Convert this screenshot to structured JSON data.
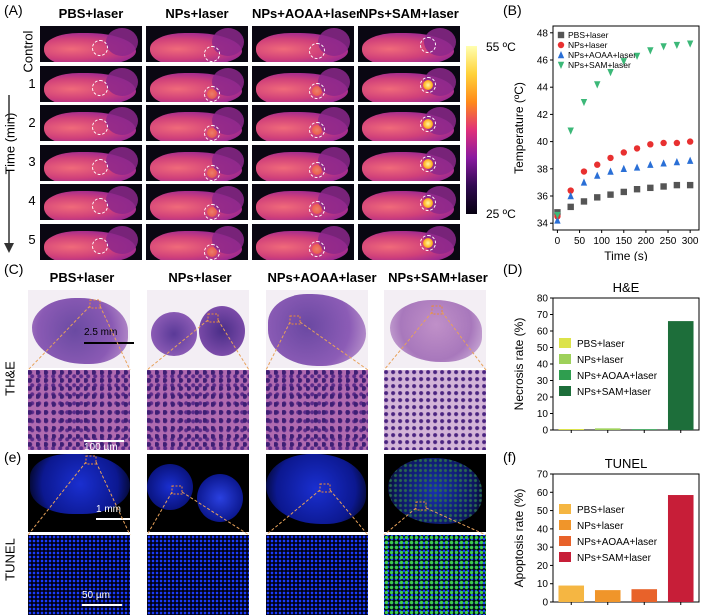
{
  "panels": {
    "A": "(A)",
    "B": "(B)",
    "C": "(C)",
    "D": "(D)",
    "e": "(e)",
    "f": "(f)"
  },
  "groups": [
    "PBS+laser",
    "NPs+laser",
    "NPs+AOAA+laser",
    "NPs+SAM+laser"
  ],
  "thermal": {
    "rows": [
      "Control",
      "1",
      "2",
      "3",
      "4",
      "5"
    ],
    "time_axis": "Time (min)",
    "colorbar_max": "55 ºC",
    "colorbar_min": "25 ºC"
  },
  "stain_labels": {
    "he": "TH&E",
    "tunel": "TUNEL"
  },
  "scale_bars": {
    "he_top": "2.5 mm",
    "he_bottom": "100 µm",
    "tunel_top": "1 mm",
    "tunel_bottom": "50 µm"
  },
  "colors": {
    "pbs": "#555555",
    "nps": "#e83030",
    "aoaa": "#2a6fd6",
    "sam": "#3cb878"
  },
  "chart_data": [
    {
      "id": "B",
      "type": "scatter",
      "xlabel": "Time (s)",
      "ylabel": "Temperature (ºC)",
      "xlim": [
        -10,
        320
      ],
      "ylim": [
        33.5,
        48.5
      ],
      "xticks": [
        0,
        50,
        100,
        150,
        200,
        250,
        300
      ],
      "yticks": [
        34,
        36,
        38,
        40,
        42,
        44,
        46,
        48
      ],
      "x": [
        0,
        30,
        60,
        90,
        120,
        150,
        180,
        210,
        240,
        270,
        300
      ],
      "series": [
        {
          "name": "PBS+laser",
          "marker": "square",
          "color": "#555555",
          "values": [
            34.8,
            35.2,
            35.6,
            35.9,
            36.1,
            36.3,
            36.5,
            36.6,
            36.7,
            36.8,
            36.8
          ]
        },
        {
          "name": "NPs+laser",
          "marker": "circle",
          "color": "#e83030",
          "values": [
            34.5,
            36.4,
            37.8,
            38.3,
            38.8,
            39.2,
            39.5,
            39.8,
            39.9,
            39.9,
            40.0
          ]
        },
        {
          "name": "NPs+AOAA+laser",
          "marker": "triangle",
          "color": "#2a6fd6",
          "values": [
            34.2,
            36.0,
            37.0,
            37.5,
            37.8,
            38.0,
            38.1,
            38.3,
            38.4,
            38.5,
            38.6
          ]
        },
        {
          "name": "NPs+SAM+laser",
          "marker": "triangle-down",
          "color": "#3cb878",
          "values": [
            34.6,
            40.8,
            42.9,
            44.2,
            45.1,
            45.9,
            46.3,
            46.7,
            47.0,
            47.1,
            47.2
          ]
        }
      ]
    },
    {
      "id": "D",
      "type": "bar",
      "title": "H&E",
      "ylabel": "Necrosis rate (%)",
      "ylim": [
        0,
        80
      ],
      "yticks": [
        0,
        10,
        20,
        30,
        40,
        50,
        60,
        70,
        80
      ],
      "categories": [
        "PBS+laser",
        "NPs+laser",
        "NPs+AOAA+laser",
        "NPs+SAM+laser"
      ],
      "values": [
        0.6,
        1.0,
        0.5,
        66
      ],
      "colors": [
        "#dce34a",
        "#9ed15a",
        "#2f9e4f",
        "#1d6e3a"
      ]
    },
    {
      "id": "f",
      "type": "bar",
      "title": "TUNEL",
      "ylabel": "Apoptosis rate (%)",
      "ylim": [
        0,
        70
      ],
      "yticks": [
        0,
        10,
        20,
        30,
        40,
        50,
        60,
        70
      ],
      "categories": [
        "PBS+laser",
        "NPs+laser",
        "NPs+AOAA+laser",
        "NPs+SAM+laser"
      ],
      "values": [
        9,
        6.5,
        7,
        58.5
      ],
      "colors": [
        "#f5b642",
        "#f0952a",
        "#e8622a",
        "#c71e38"
      ]
    }
  ]
}
